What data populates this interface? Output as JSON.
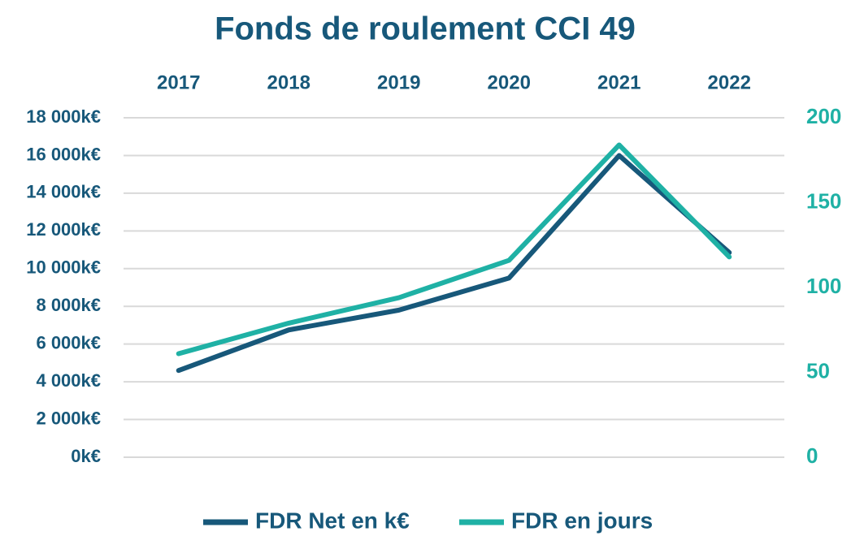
{
  "chart_data": {
    "type": "line",
    "title": "Fonds de roulement CCI 49",
    "categories": [
      "2017",
      "2018",
      "2019",
      "2020",
      "2021",
      "2022"
    ],
    "series": [
      {
        "name": "FDR Net en k€",
        "color": "#17587a",
        "values": [
          4600,
          6750,
          7800,
          9500,
          16000,
          10850
        ]
      },
      {
        "name": "FDR en jours",
        "color": "#1fb1a5",
        "axis": "y2",
        "values": [
          61,
          79,
          94,
          116,
          184,
          118
        ]
      }
    ],
    "ylim": [
      0,
      18000
    ],
    "yticks": [
      {
        "value": 0,
        "label": "0k€"
      },
      {
        "value": 2000,
        "label": "2 000k€"
      },
      {
        "value": 4000,
        "label": "4 000k€"
      },
      {
        "value": 6000,
        "label": "6 000k€"
      },
      {
        "value": 8000,
        "label": "8 000k€"
      },
      {
        "value": 10000,
        "label": "10 000k€"
      },
      {
        "value": 12000,
        "label": "12 000k€"
      },
      {
        "value": 14000,
        "label": "14 000k€"
      },
      {
        "value": 16000,
        "label": "16 000k€"
      },
      {
        "value": 18000,
        "label": "18 000k€"
      }
    ],
    "y2lim": [
      0,
      200
    ],
    "y2ticks": [
      0,
      50,
      100,
      150,
      200
    ],
    "grid": true,
    "legend": "bottom"
  }
}
